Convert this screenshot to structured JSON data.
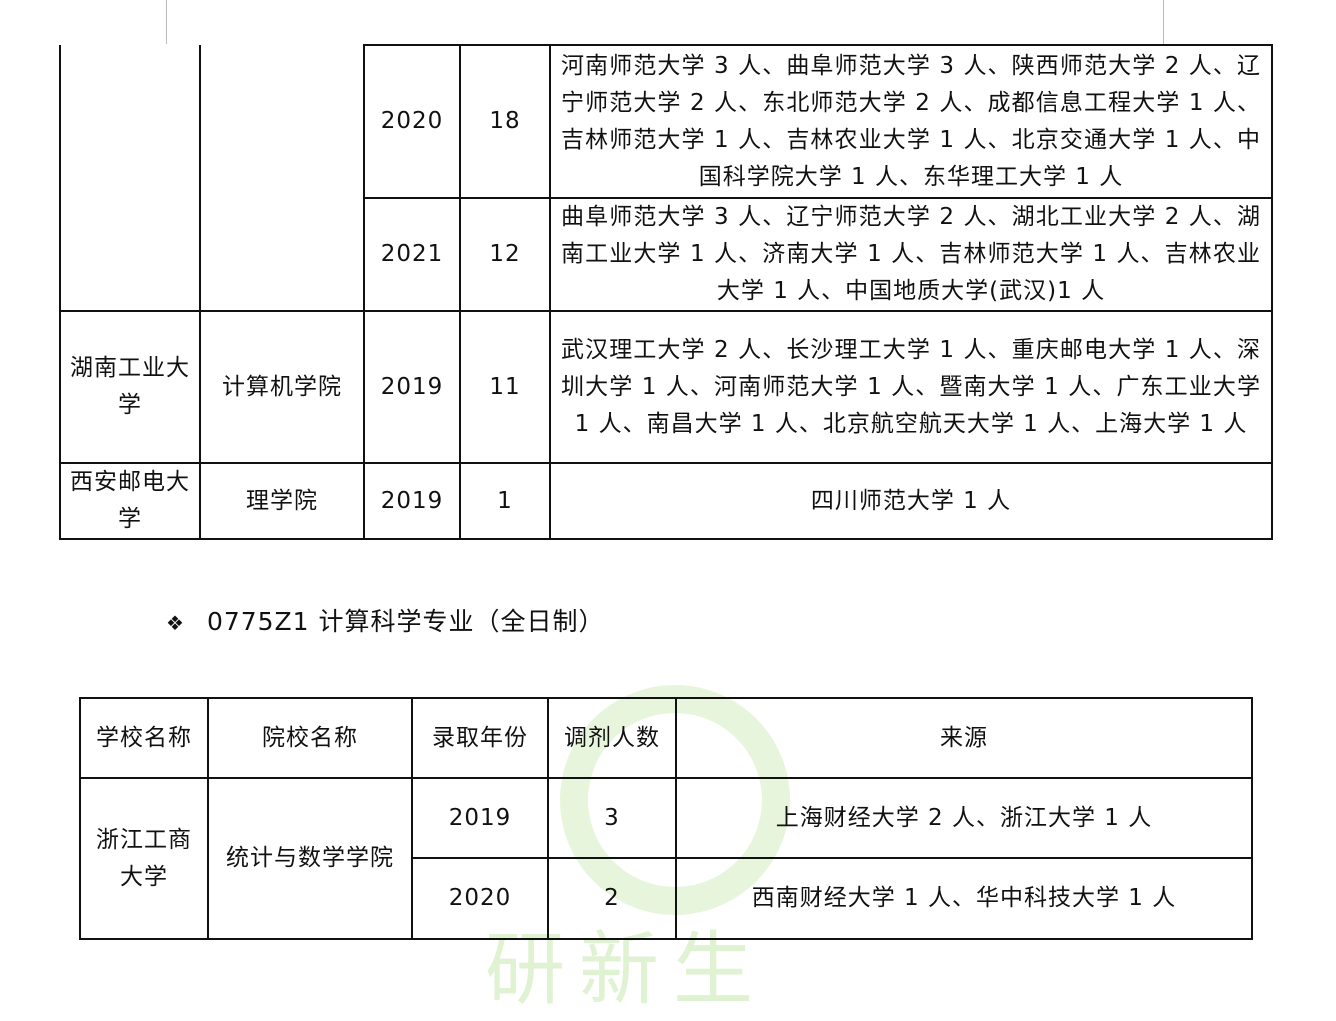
{
  "table1": {
    "rows": [
      {
        "year": "2020",
        "count": "18",
        "source": "河南师范大学 3 人、曲阜师范大学 3 人、陕西师范大学 2 人、辽宁师范大学 2 人、东北师范大学 2 人、成都信息工程大学 1 人、吉林师范大学 1 人、吉林农业大学 1 人、北京交通大学 1 人、中国科学院大学 1 人、东华理工大学 1 人"
      },
      {
        "year": "2021",
        "count": "12",
        "source": "曲阜师范大学 3 人、辽宁师范大学 2 人、湖北工业大学 2 人、湖南工业大学 1 人、济南大学 1 人、吉林师范大学 1 人、吉林农业大学 1 人、中国地质大学(武汉)1 人"
      },
      {
        "school": "湖南工业大学",
        "college": "计算机学院",
        "year": "2019",
        "count": "11",
        "source": "武汉理工大学 2 人、长沙理工大学 1 人、重庆邮电大学 1 人、深圳大学 1 人、河南师范大学 1 人、暨南大学 1 人、广东工业大学 1 人、南昌大学 1 人、北京航空航天大学 1 人、上海大学 1 人"
      },
      {
        "school": "西安邮电大学",
        "college": "理学院",
        "year": "2019",
        "count": "1",
        "source": "四川师范大学 1 人"
      }
    ]
  },
  "section": {
    "bullet_icon": "diamond-bullet",
    "bullet": "❖",
    "title": "0775Z1 计算科学专业（全日制）"
  },
  "table2": {
    "headers": [
      "学校名称",
      "院校名称",
      "录取年份",
      "调剂人数",
      "来源"
    ],
    "school": "浙江工商大学",
    "college": "统计与数学学院",
    "rows": [
      {
        "year": "2019",
        "count": "3",
        "source": "上海财经大学 2 人、浙江大学 1 人"
      },
      {
        "year": "2020",
        "count": "2",
        "source": "西南财经大学 1 人、华中科技大学 1 人"
      }
    ]
  },
  "watermark": {
    "text": "研新生",
    "color": "#8cd25a"
  }
}
